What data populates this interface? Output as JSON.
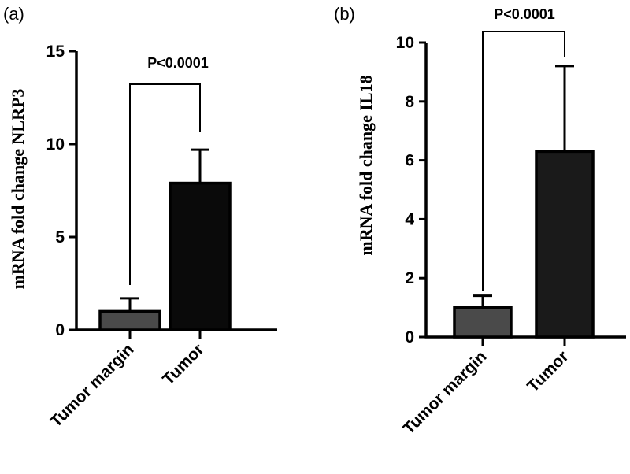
{
  "chart_data": [
    {
      "panel": "(a)",
      "type": "bar",
      "categories": [
        "Tumor margin",
        "Tumor"
      ],
      "values": [
        1.0,
        7.9
      ],
      "errors": [
        0.7,
        1.8
      ],
      "bar_colors": [
        "#4a4a4a",
        "#0a0a0a"
      ],
      "ylabel": "mRNA fold change NLRP3",
      "xlabel": "",
      "ylim": [
        0,
        15
      ],
      "yticks": [
        0,
        5,
        10,
        15
      ],
      "significance": "P<0.0001"
    },
    {
      "panel": "(b)",
      "type": "bar",
      "categories": [
        "Tumor margin",
        "Tumor"
      ],
      "values": [
        1.0,
        6.3
      ],
      "errors": [
        0.4,
        2.9
      ],
      "bar_colors": [
        "#4a4a4a",
        "#1a1a1a"
      ],
      "ylabel": "mRNA fold change IL18",
      "xlabel": "",
      "ylim": [
        0,
        10
      ],
      "yticks": [
        0,
        2,
        4,
        6,
        8,
        10
      ],
      "significance": "P<0.0001"
    }
  ]
}
